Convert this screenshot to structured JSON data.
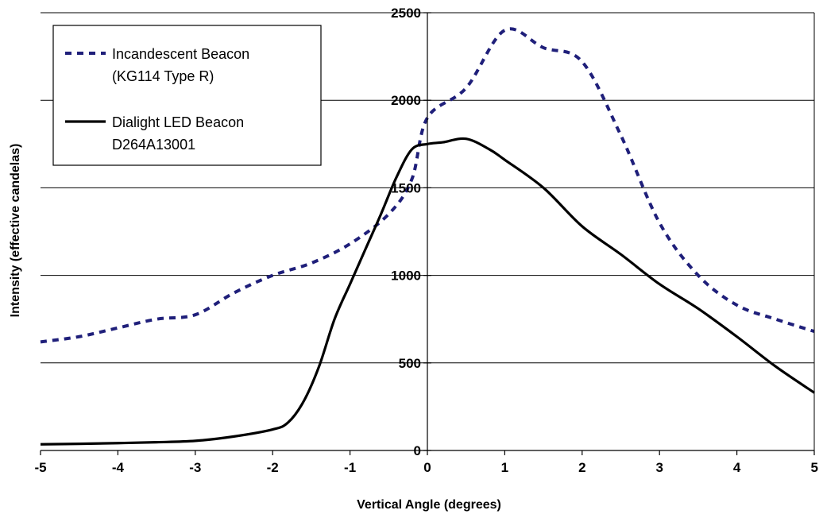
{
  "chart_data": {
    "type": "line",
    "title": "",
    "xlabel": "Vertical Angle (degrees)",
    "ylabel": "Intensity (effective candelas)",
    "xlim": [
      -5,
      5
    ],
    "ylim": [
      0,
      2500
    ],
    "x_ticks": [
      "-5",
      "-4",
      "-3",
      "-2",
      "-1",
      "0",
      "1",
      "2",
      "3",
      "4",
      "5"
    ],
    "y_ticks": [
      "0",
      "500",
      "1000",
      "1500",
      "2000",
      "2500"
    ],
    "grid": "horizontal",
    "legend_position": "top-left",
    "series": [
      {
        "name": "Incandescent Beacon (KG114 Type R)",
        "legend_lines": [
          "Incandescent Beacon",
          "(KG114 Type R)"
        ],
        "color": "#1f1f7a",
        "style": "dashed",
        "points": [
          [
            -5,
            620
          ],
          [
            -4.5,
            650
          ],
          [
            -4,
            700
          ],
          [
            -3.5,
            750
          ],
          [
            -3,
            775
          ],
          [
            -2.5,
            900
          ],
          [
            -2,
            1000
          ],
          [
            -1.5,
            1070
          ],
          [
            -1,
            1180
          ],
          [
            -0.5,
            1350
          ],
          [
            -0.2,
            1550
          ],
          [
            0,
            1900
          ],
          [
            0.5,
            2070
          ],
          [
            1,
            2400
          ],
          [
            1.5,
            2300
          ],
          [
            2,
            2220
          ],
          [
            2.5,
            1800
          ],
          [
            3,
            1300
          ],
          [
            3.5,
            1000
          ],
          [
            4,
            830
          ],
          [
            4.5,
            750
          ],
          [
            5,
            680
          ]
        ]
      },
      {
        "name": "Dialight LED Beacon D264A13001",
        "legend_lines": [
          "Dialight LED Beacon",
          "D264A13001"
        ],
        "color": "#000000",
        "style": "solid",
        "points": [
          [
            -5,
            35
          ],
          [
            -4.5,
            38
          ],
          [
            -4,
            42
          ],
          [
            -3.5,
            47
          ],
          [
            -3,
            55
          ],
          [
            -2.5,
            80
          ],
          [
            -2,
            120
          ],
          [
            -1.8,
            160
          ],
          [
            -1.6,
            280
          ],
          [
            -1.4,
            480
          ],
          [
            -1.2,
            750
          ],
          [
            -1,
            950
          ],
          [
            -0.8,
            1150
          ],
          [
            -0.6,
            1350
          ],
          [
            -0.4,
            1560
          ],
          [
            -0.2,
            1720
          ],
          [
            0,
            1750
          ],
          [
            0.2,
            1760
          ],
          [
            0.5,
            1780
          ],
          [
            0.8,
            1720
          ],
          [
            1,
            1660
          ],
          [
            1.5,
            1500
          ],
          [
            2,
            1280
          ],
          [
            2.5,
            1120
          ],
          [
            3,
            950
          ],
          [
            3.5,
            810
          ],
          [
            4,
            650
          ],
          [
            4.5,
            480
          ],
          [
            5,
            330
          ]
        ]
      }
    ]
  }
}
